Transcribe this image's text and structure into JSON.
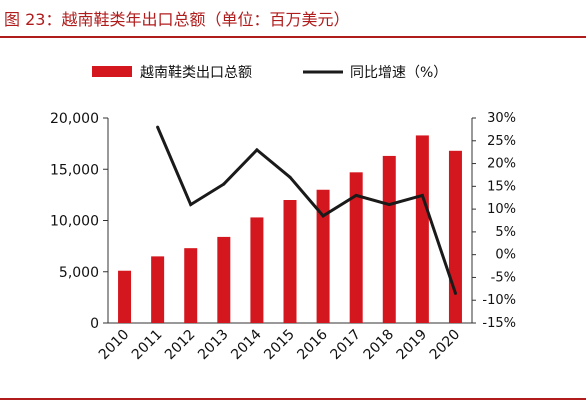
{
  "figure": {
    "title": "图 23：越南鞋类年出口总额（单位：百万美元）"
  },
  "chart_data": {
    "type": "bar",
    "categories": [
      "2010",
      "2011",
      "2012",
      "2013",
      "2014",
      "2015",
      "2016",
      "2017",
      "2018",
      "2019",
      "2020"
    ],
    "series": [
      {
        "name": "越南鞋类出口总额",
        "kind": "bar",
        "axis": "left",
        "color": "#d4171e",
        "values": [
          5100,
          6500,
          7300,
          8400,
          10300,
          12000,
          13000,
          14700,
          16300,
          18300,
          16800
        ]
      },
      {
        "name": "同比增速（%）",
        "kind": "line",
        "axis": "right",
        "color": "#1a1a1a",
        "values": [
          null,
          28,
          11,
          15.5,
          23,
          17,
          8.5,
          13,
          11,
          13,
          -8.5
        ]
      }
    ],
    "y_left": {
      "ylim": [
        0,
        20000
      ],
      "ticks": [
        0,
        5000,
        10000,
        15000,
        20000
      ],
      "tick_labels": [
        "0",
        "5,000",
        "10,000",
        "15,000",
        "20,000"
      ]
    },
    "y_right": {
      "ylim": [
        -15,
        30
      ],
      "ticks": [
        -15,
        -10,
        -5,
        0,
        5,
        10,
        15,
        20,
        25,
        30
      ],
      "tick_labels": [
        "-15%",
        "-10%",
        "-5%",
        "0%",
        "5%",
        "10%",
        "15%",
        "20%",
        "25%",
        "30%"
      ]
    },
    "legend_position": "top-center",
    "grid": false
  }
}
